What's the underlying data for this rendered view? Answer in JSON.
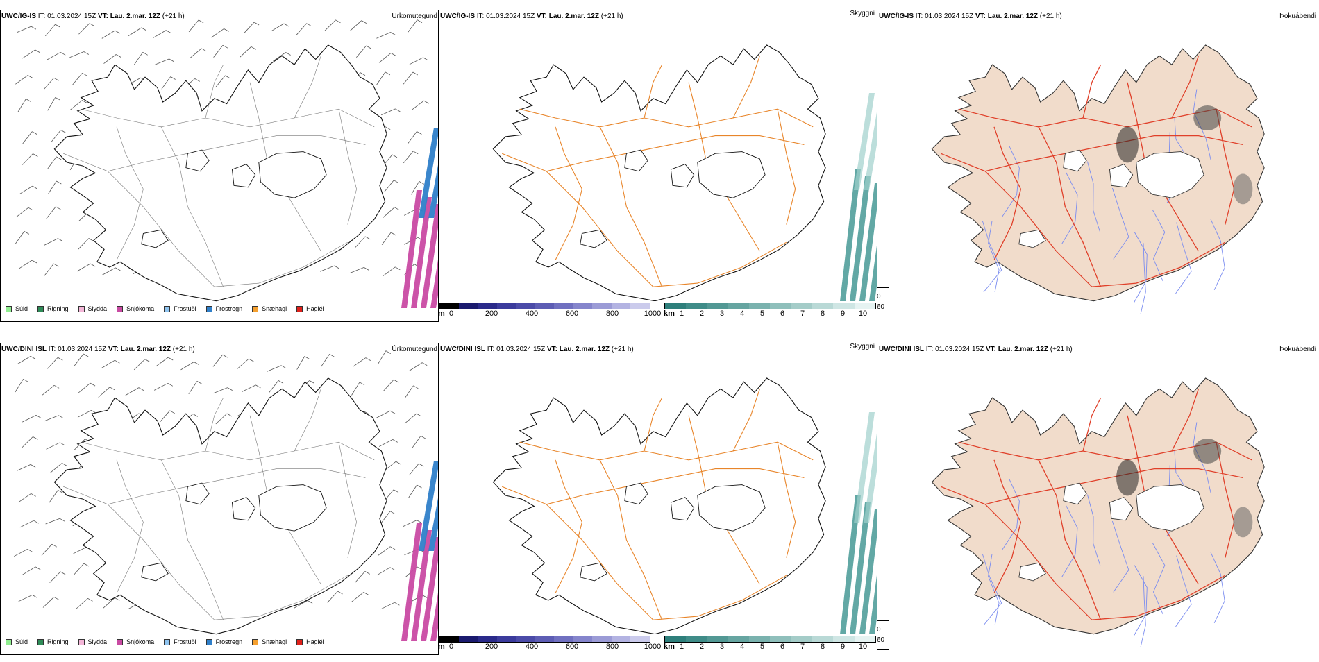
{
  "colors": {
    "coast": "#111111",
    "roads_orange": "#e8852a",
    "roads_red": "#e0402a",
    "rivers": "#7a8cf0",
    "land_fill": "#f1dccb",
    "visibility_teal": "#2e8b87",
    "precip_snow": "#c94aa3",
    "precip_freezing_rain": "#2f7fc9"
  },
  "rows": [
    {
      "precip_panel": {
        "model": "UWC/IG-IS",
        "it_label": "IT:",
        "it_value": "01.03.2024 15Z",
        "vt_label": "VT:",
        "vt_value": "Lau. 2.mar. 12Z",
        "lead": "(+21 h)",
        "name": "Úrkomutegund"
      },
      "cloud_panel": {
        "model": "UWC/IG-IS",
        "it_label": "IT:",
        "it_value": "01.03.2024 15Z",
        "vt_label": "VT:",
        "vt_value": "Lau. 2.mar. 12Z",
        "lead": "(+21 h)",
        "name": "Skyggni"
      },
      "fog_panel": {
        "model": "UWC/IG-IS",
        "it_label": "IT:",
        "it_value": "01.03.2024 15Z",
        "vt_label": "VT:",
        "vt_value": "Lau. 2.mar. 12Z",
        "lead": "(+21 h)",
        "name": "Þokuábendi"
      }
    },
    {
      "precip_panel": {
        "model": "UWC/DINI ISL",
        "it_label": "IT:",
        "it_value": "01.03.2024 15Z",
        "vt_label": "VT:",
        "vt_value": "Lau. 2.mar. 12Z",
        "lead": "(+21 h)",
        "name": "Úrkomutegund"
      },
      "cloud_panel": {
        "model": "UWC/DINI ISL",
        "it_label": "IT:",
        "it_value": "01.03.2024 15Z",
        "vt_label": "VT:",
        "vt_value": "Lau. 2.mar. 12Z",
        "lead": "(+21 h)",
        "name": "Skyggni"
      },
      "fog_panel": {
        "model": "UWC/DINI ISL",
        "it_label": "IT:",
        "it_value": "01.03.2024 15Z",
        "vt_label": "VT:",
        "vt_value": "Lau. 2.mar. 12Z",
        "lead": "(+21 h)",
        "name": "Þokuábendi"
      }
    }
  ],
  "precip_legend": [
    {
      "label": "Súld",
      "color": "#90ee90"
    },
    {
      "label": "Rigning",
      "color": "#2e8b57"
    },
    {
      "label": "Slydda",
      "color": "#f4b6d8"
    },
    {
      "label": "Snjókoma",
      "color": "#c94aa3"
    },
    {
      "label": "Frostúði",
      "color": "#8fc4f0"
    },
    {
      "label": "Frostregn",
      "color": "#2f7fc9"
    },
    {
      "label": "Snæhagl",
      "color": "#f5a030"
    },
    {
      "label": "Haglél",
      "color": "#e0201a"
    }
  ],
  "height_scale": {
    "unit": "m",
    "ticks": [
      "0",
      "200",
      "400",
      "600",
      "800",
      "1000"
    ],
    "colors": [
      "#000000",
      "#1a1a6e",
      "#2a2a8a",
      "#3b3b9c",
      "#4b4ba8",
      "#5d5db4",
      "#7070c0",
      "#8585cc",
      "#9b9bd6",
      "#b3b3e2",
      "#cbcbec"
    ]
  },
  "visibility_scale": {
    "unit": "km",
    "ticks": [
      "1",
      "2",
      "3",
      "4",
      "5",
      "6",
      "7",
      "8",
      "9",
      "10"
    ],
    "colors": [
      "#2e7f7b",
      "#3f8c88",
      "#529894",
      "#66a5a1",
      "#7ab2ae",
      "#8fbfbb",
      "#a4ccc8",
      "#b9d9d6",
      "#cfe6e4",
      "#e6f3f2"
    ]
  },
  "fog_legend": [
    {
      "label": "0",
      "color": "#000000"
    },
    {
      "label": "60",
      "color": "#ffffff"
    }
  ]
}
